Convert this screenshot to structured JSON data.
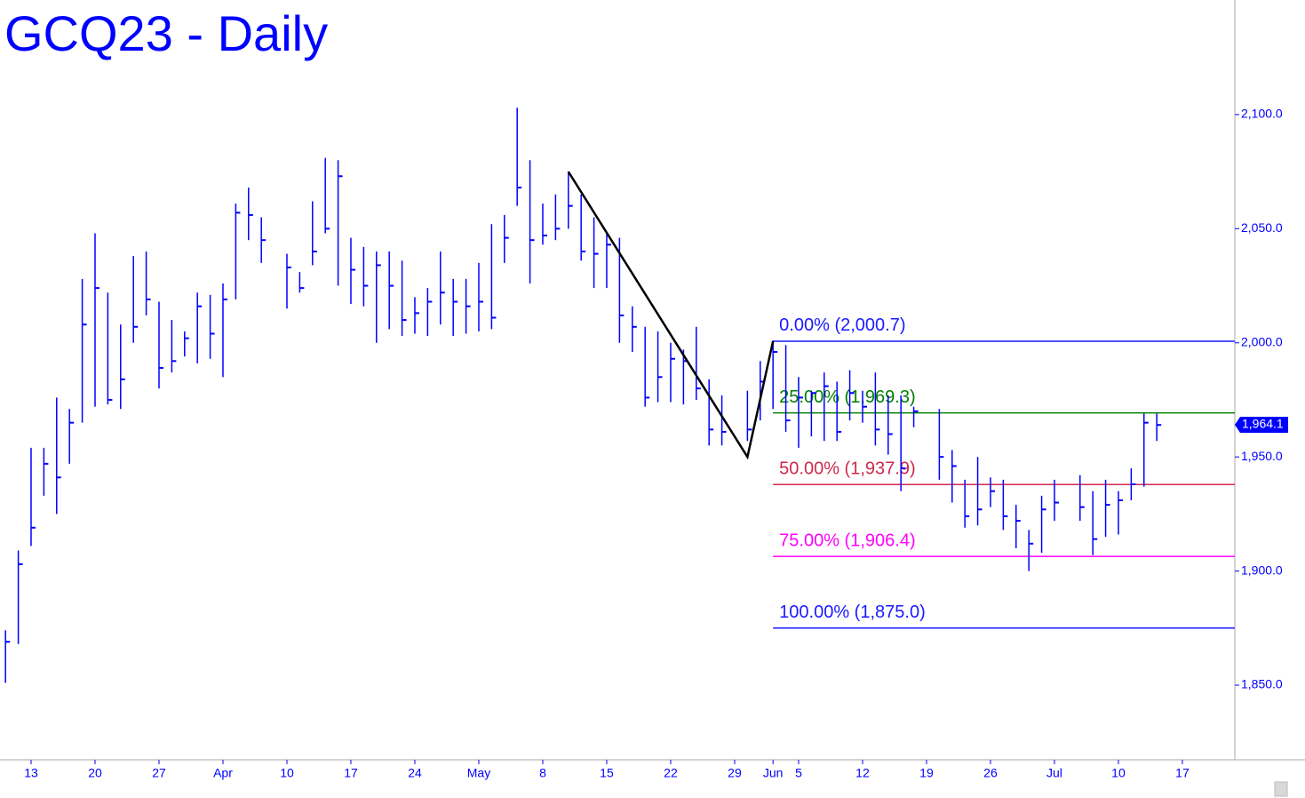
{
  "chart_data": {
    "type": "ohlc",
    "title": "GCQ23 - Daily",
    "color": "#0000ff",
    "x": [
      -2,
      -1,
      0,
      1,
      2,
      3,
      4,
      5,
      6,
      7,
      8,
      9,
      10,
      11,
      12,
      13,
      14,
      15,
      16,
      17,
      18,
      20,
      21,
      22,
      23,
      24,
      25,
      26,
      27,
      28,
      29,
      30,
      31,
      32,
      33,
      34,
      35,
      36,
      37,
      38,
      39,
      40,
      41,
      42,
      43,
      44,
      45,
      46,
      47,
      48,
      49,
      50,
      51,
      52,
      53,
      54,
      56,
      57,
      58,
      59,
      60,
      61,
      62,
      63,
      64,
      65,
      66,
      67,
      68,
      69,
      71,
      72,
      73,
      74,
      75,
      76,
      77,
      78,
      79,
      80,
      82,
      83,
      84,
      85,
      86,
      87,
      88
    ],
    "high": [
      1874,
      1909,
      1954,
      1954,
      1976,
      1971,
      2028,
      2048,
      2022,
      2008,
      2038,
      2040,
      2018,
      2010,
      2005,
      2022,
      2021,
      2026,
      2061,
      2068,
      2055,
      2039,
      2031,
      2062,
      2081,
      2080,
      2046,
      2042,
      2040,
      2040,
      2036,
      2020,
      2024,
      2040,
      2028,
      2028,
      2035,
      2052,
      2056,
      2103,
      2080,
      2061,
      2065,
      2075,
      2065,
      2055,
      2048,
      2046,
      2016,
      2007,
      2005,
      2000,
      1997,
      2007,
      1984,
      1977,
      1979,
      1992,
      2001,
      1999,
      1985,
      1979,
      1987,
      1983,
      1988,
      1979,
      1987,
      1977,
      1977,
      1972,
      1971,
      1953,
      1940,
      1950,
      1941,
      1940,
      1929,
      1918,
      1933,
      1940,
      1942,
      1935,
      1940,
      1935,
      1945,
      1969,
      1969
    ],
    "low": [
      1851,
      1868,
      1911,
      1933,
      1925,
      1947,
      1965,
      1972,
      1973,
      1971,
      2000,
      2012,
      1980,
      1987,
      1994,
      1991,
      1993,
      1985,
      2019,
      2045,
      2035,
      2015,
      2022,
      2034,
      2048,
      2025,
      2017,
      2016,
      2000,
      2006,
      2003,
      2004,
      2003,
      2008,
      2003,
      2004,
      2005,
      2006,
      2035,
      2060,
      2026,
      2043,
      2045,
      2050,
      2036,
      2024,
      2024,
      2000,
      1996,
      1972,
      1974,
      1974,
      1973,
      1975,
      1955,
      1955,
      1957,
      1966,
      1971,
      1961,
      1954,
      1959,
      1957,
      1957,
      1966,
      1965,
      1955,
      1951,
      1935,
      1963,
      1940,
      1930,
      1919,
      1920,
      1928,
      1918,
      1910,
      1900,
      1908,
      1922,
      1922,
      1907,
      1915,
      1916,
      1931,
      1937,
      1957
    ],
    "close": [
      1869,
      1903,
      1919,
      1947,
      1941,
      1965,
      2008,
      2024,
      1975,
      1984,
      2007,
      2019,
      1989,
      1992,
      2002,
      2016,
      2004,
      2019,
      2057,
      2056,
      2045,
      2033,
      2024,
      2040,
      2050,
      2073,
      2032,
      2025,
      2034,
      2025,
      2010,
      2013,
      2018,
      2022,
      2018,
      2016,
      2018,
      2011,
      2046,
      2068,
      2045,
      2047,
      2050,
      2060,
      2040,
      2039,
      2043,
      2012,
      2007,
      1976,
      1985,
      1993,
      1992,
      1980,
      1962,
      1961,
      1962,
      1983,
      1996,
      1966,
      1976,
      1978,
      1981,
      1961,
      1978,
      1972,
      1962,
      1960,
      1945,
      1970,
      1950,
      1946,
      1924,
      1927,
      1935,
      1924,
      1922,
      1912,
      1927,
      1930,
      1928,
      1914,
      1929,
      1931,
      1938,
      1965,
      1964
    ],
    "xlim": [
      -2.43,
      94.1
    ],
    "xticks": [
      {
        "value": 0,
        "label": "13"
      },
      {
        "value": 5,
        "label": "20"
      },
      {
        "value": 10,
        "label": "27"
      },
      {
        "value": 15,
        "label": "Apr"
      },
      {
        "value": 20,
        "label": "10"
      },
      {
        "value": 25,
        "label": "17"
      },
      {
        "value": 30,
        "label": "24"
      },
      {
        "value": 35,
        "label": "May"
      },
      {
        "value": 40,
        "label": "8"
      },
      {
        "value": 45,
        "label": "15"
      },
      {
        "value": 50,
        "label": "22"
      },
      {
        "value": 55,
        "label": "29"
      },
      {
        "value": 58,
        "label": "Jun"
      },
      {
        "value": 60,
        "label": "5"
      },
      {
        "value": 65,
        "label": "12"
      },
      {
        "value": 70,
        "label": "19"
      },
      {
        "value": 75,
        "label": "26"
      },
      {
        "value": 80,
        "label": "Jul"
      },
      {
        "value": 85,
        "label": "10"
      },
      {
        "value": 90,
        "label": "17"
      }
    ],
    "ylim": [
      1817.3,
      2150.2
    ],
    "yticks": [
      {
        "value": 1850,
        "label": "1,850.0"
      },
      {
        "value": 1900,
        "label": "1,900.0"
      },
      {
        "value": 1950,
        "label": "1,950.0"
      },
      {
        "value": 2000,
        "label": "2,000.0"
      },
      {
        "value": 2050,
        "label": "2,050.0"
      },
      {
        "value": 2100,
        "label": "2,100.0"
      }
    ],
    "last_price": {
      "value": 1964.1,
      "label": "1,964.1"
    },
    "trendline": {
      "x": [
        42,
        56,
        58
      ],
      "values": [
        2075,
        1950,
        2000.7
      ],
      "color": "#000000"
    },
    "fib_levels": [
      {
        "label": "0.00% (2,000.7)",
        "value": 2000.7,
        "color": "#1a1aff"
      },
      {
        "label": "25.00% (1,969.3)",
        "value": 1969.3,
        "color": "#008000"
      },
      {
        "label": "50.00% (1,937.9)",
        "value": 1937.9,
        "color": "#d0284c"
      },
      {
        "label": "75.00% (1,906.4)",
        "value": 1906.4,
        "color": "#ff00ff"
      },
      {
        "label": "100.00% (1,875.0)",
        "value": 1875.0,
        "color": "#1a1aff"
      }
    ]
  }
}
